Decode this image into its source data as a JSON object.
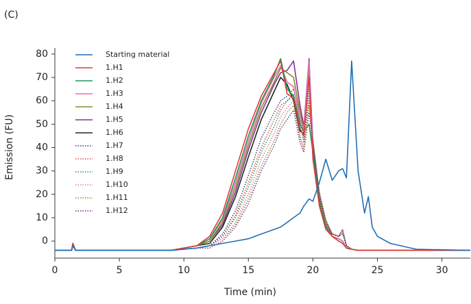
{
  "chart_data": {
    "type": "line",
    "panel_label": "(C)",
    "xlabel": "Time (min)",
    "ylabel": "Emission (FU)",
    "xlim": [
      0,
      32.2
    ],
    "ylim": [
      -7.3,
      82.6
    ],
    "xticks": [
      0,
      5,
      10,
      15,
      20,
      25,
      30
    ],
    "yticks": [
      0,
      10,
      20,
      30,
      40,
      50,
      60,
      70,
      80
    ],
    "legend": "upper left",
    "x": [
      0,
      1.3,
      1.4,
      1.6,
      3,
      6,
      9,
      10,
      11,
      12,
      13,
      14,
      15,
      16,
      17,
      17.5,
      18,
      18.5,
      19,
      19.3,
      19.7,
      20,
      20.5,
      21,
      21.5,
      22,
      22.3,
      22.6,
      23,
      23.5,
      24,
      24.3,
      24.6,
      25,
      26,
      28,
      32.2
    ],
    "series": [
      {
        "name": "Starting material",
        "color": "#1f6fb4",
        "style": "solid",
        "values": [
          -4,
          -4,
          -2,
          -4,
          -4,
          -4,
          -4,
          -3.5,
          -3,
          -2,
          -1,
          0,
          1,
          3,
          5,
          6,
          8,
          10,
          12,
          15,
          18,
          17,
          25,
          35,
          26,
          30,
          31,
          27,
          77,
          30,
          12,
          19,
          6,
          2,
          -1,
          -3.5,
          -4
        ]
      },
      {
        "name": "1.H1",
        "color": "#e03c3c",
        "style": "solid",
        "values": [
          -4,
          -4,
          -1,
          -4,
          -4,
          -4,
          -4,
          -3,
          -2,
          2,
          12,
          30,
          48,
          62,
          72,
          77,
          63,
          61,
          48,
          45,
          70,
          35,
          15,
          5,
          2,
          0,
          -1,
          -3,
          -3.5,
          -4,
          -4,
          -4,
          -4,
          -4,
          -4,
          -4,
          -4
        ]
      },
      {
        "name": "1.H2",
        "color": "#1a9850",
        "style": "solid",
        "values": [
          -4,
          -4,
          -1,
          -4,
          -4,
          -4,
          -4,
          -3,
          -2,
          1,
          10,
          27,
          45,
          60,
          71,
          78,
          65,
          62,
          50,
          47,
          50,
          38,
          16,
          6,
          2,
          0,
          -1,
          -3,
          -3.5,
          -4,
          -4,
          -4,
          -4,
          -4,
          -4,
          -4,
          -4
        ]
      },
      {
        "name": "1.H3",
        "color": "#e36fb0",
        "style": "solid",
        "values": [
          -4,
          -4,
          -1,
          -4,
          -4,
          -4,
          -4,
          -3,
          -2,
          1,
          9,
          25,
          43,
          59,
          70,
          75,
          68,
          66,
          52,
          48,
          77,
          36,
          16,
          6,
          2,
          1,
          0,
          -3,
          -3.5,
          -4,
          -4,
          -4,
          -4,
          -4,
          -4,
          -4,
          -4
        ]
      },
      {
        "name": "1.H4",
        "color": "#8a8a2a",
        "style": "solid",
        "values": [
          -4,
          -4,
          -1,
          -4,
          -4,
          -4,
          -4,
          -3,
          -2,
          0,
          8,
          23,
          41,
          57,
          68,
          74,
          72,
          70,
          55,
          48,
          72,
          38,
          17,
          7,
          2,
          1,
          0,
          -3,
          -3.5,
          -4,
          -4,
          -4,
          -4,
          -4,
          -4,
          -4,
          -4
        ]
      },
      {
        "name": "1.H5",
        "color": "#8a2e9e",
        "style": "solid",
        "values": [
          -4,
          -4,
          -1,
          -4,
          -4,
          -4,
          -4,
          -3,
          -2,
          0,
          7,
          21,
          39,
          55,
          67,
          72,
          73,
          77,
          58,
          49,
          78,
          40,
          18,
          7,
          2,
          1,
          0,
          -3,
          -3.5,
          -4,
          -4,
          -4,
          -4,
          -4,
          -4,
          -4,
          -4
        ]
      },
      {
        "name": "1.H6",
        "color": "#1a2a1a",
        "style": "solid",
        "values": [
          -4,
          -4,
          -1,
          -4,
          -4,
          -4,
          -4,
          -3,
          -2,
          -1,
          6,
          19,
          36,
          52,
          64,
          70,
          67,
          60,
          47,
          46,
          76,
          40,
          17,
          7,
          2,
          1,
          0,
          -3,
          -3.5,
          -4,
          -4,
          -4,
          -4,
          -4,
          -4,
          -4,
          -4
        ]
      },
      {
        "name": "1.H7",
        "color": "#2a3a7a",
        "style": "dotted",
        "values": [
          -4,
          -4,
          -1,
          -4,
          -4,
          -4,
          -4,
          -3.5,
          -3,
          -2,
          3,
          13,
          28,
          44,
          55,
          60,
          62,
          65,
          55,
          46,
          70,
          42,
          19,
          8,
          3,
          2,
          3,
          -2,
          -3.5,
          -4,
          -4,
          -4,
          -4,
          -4,
          -4,
          -4,
          -4
        ]
      },
      {
        "name": "1.H8",
        "color": "#e04040",
        "style": "dotted",
        "values": [
          -4,
          -4,
          -1,
          -4,
          -4,
          -4,
          -4,
          -3.5,
          -3,
          -2,
          2,
          11,
          25,
          40,
          52,
          58,
          60,
          62,
          52,
          44,
          60,
          42,
          19,
          8,
          3,
          2,
          4,
          -2,
          -3.5,
          -4,
          -4,
          -4,
          -4,
          -4,
          -4,
          -4,
          -4
        ]
      },
      {
        "name": "1.H9",
        "color": "#1a9850",
        "style": "dotted",
        "values": [
          -4,
          -4,
          -1,
          -4,
          -4,
          -4,
          -4,
          -3.5,
          -3,
          -2,
          2,
          10,
          23,
          38,
          49,
          56,
          60,
          63,
          50,
          42,
          65,
          43,
          20,
          8,
          3,
          2,
          4,
          -2,
          -3.5,
          -4,
          -4,
          -4,
          -4,
          -4,
          -4,
          -4,
          -4
        ]
      },
      {
        "name": "1.H10",
        "color": "#e36fb0",
        "style": "dotted",
        "values": [
          -4,
          -4,
          -1,
          -4,
          -4,
          -4,
          -4,
          -3.5,
          -3,
          -2,
          1,
          8,
          20,
          35,
          46,
          53,
          57,
          60,
          45,
          40,
          62,
          43,
          20,
          9,
          3,
          2,
          5,
          -2,
          -3.5,
          -4,
          -4,
          -4,
          -4,
          -4,
          -4,
          -4,
          -4
        ]
      },
      {
        "name": "1.H11",
        "color": "#8a8a2a",
        "style": "dotted",
        "values": [
          -4,
          -4,
          -1,
          -4,
          -4,
          -4,
          -4,
          -3.5,
          -3,
          -2,
          1,
          7,
          18,
          32,
          43,
          50,
          55,
          58,
          44,
          39,
          58,
          43,
          21,
          9,
          3,
          2,
          5,
          -2,
          -3.5,
          -4,
          -4,
          -4,
          -4,
          -4,
          -4,
          -4,
          -4
        ]
      },
      {
        "name": "1.H12",
        "color": "#6a2a7a",
        "style": "dotted",
        "values": [
          -4,
          -4,
          -1,
          -4,
          -4,
          -4,
          -4,
          -3.5,
          -3,
          -3,
          0,
          6,
          16,
          30,
          41,
          48,
          52,
          56,
          42,
          38,
          55,
          42,
          21,
          9,
          3,
          2,
          5,
          -2,
          -3.5,
          -4,
          -4,
          -4,
          -4,
          -4,
          -4,
          -4,
          -4
        ]
      }
    ]
  }
}
